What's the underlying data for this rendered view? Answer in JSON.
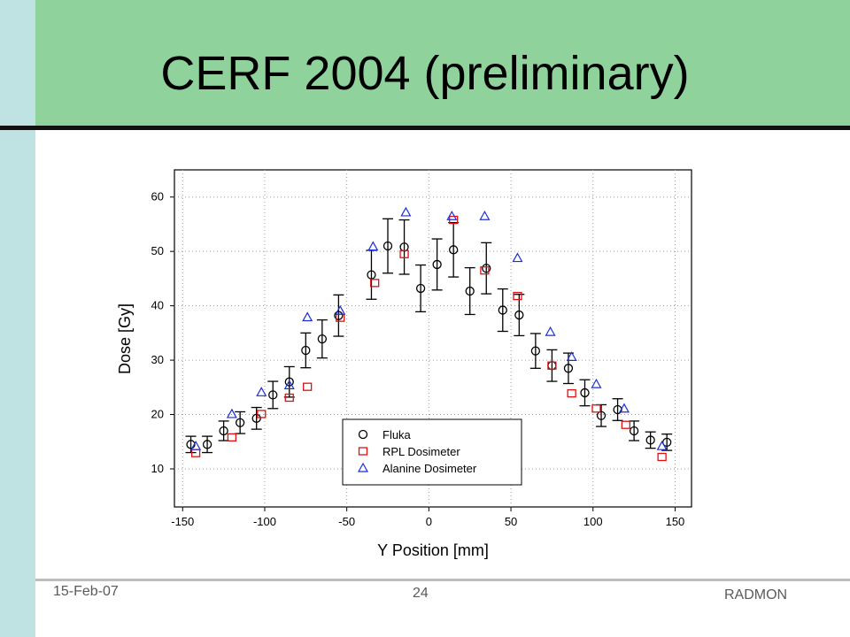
{
  "slide": {
    "title": "CERF 2004 (preliminary)",
    "date": "15-Feb-07",
    "page_number": "24",
    "footer_right": "RADMON"
  },
  "colors": {
    "header_band": "#8fd29c",
    "left_bar": "#bfe3e3",
    "fluka": "#000000",
    "rpl": "#e01010",
    "alanine": "#1a2fd8"
  },
  "chart_data": {
    "type": "scatter",
    "xlabel": "Y Position [mm]",
    "ylabel": "Dose [Gy]",
    "xlim": [
      -155,
      160
    ],
    "ylim": [
      3,
      65
    ],
    "xticks": [
      -150,
      -100,
      -50,
      0,
      50,
      100,
      150
    ],
    "yticks": [
      10,
      20,
      30,
      40,
      50,
      60
    ],
    "grid": true,
    "legend_position": "bottom-center",
    "series": [
      {
        "name": "Fluka",
        "marker": "circle",
        "points": [
          {
            "x": -145,
            "y": 14.5,
            "err": 1.5
          },
          {
            "x": -135,
            "y": 14.5,
            "err": 1.5
          },
          {
            "x": -125,
            "y": 17.0,
            "err": 1.8
          },
          {
            "x": -115,
            "y": 18.5,
            "err": 2.0
          },
          {
            "x": -105,
            "y": 19.3,
            "err": 2.0
          },
          {
            "x": -95,
            "y": 23.6,
            "err": 2.5
          },
          {
            "x": -85,
            "y": 26.0,
            "err": 2.8
          },
          {
            "x": -75,
            "y": 31.8,
            "err": 3.2
          },
          {
            "x": -65,
            "y": 33.9,
            "err": 3.5
          },
          {
            "x": -55,
            "y": 38.2,
            "err": 3.8
          },
          {
            "x": -35,
            "y": 45.7,
            "err": 4.5
          },
          {
            "x": -25,
            "y": 51.0,
            "err": 5.0
          },
          {
            "x": -15,
            "y": 50.8,
            "err": 5.0
          },
          {
            "x": -5,
            "y": 43.2,
            "err": 4.3
          },
          {
            "x": 5,
            "y": 47.6,
            "err": 4.7
          },
          {
            "x": 15,
            "y": 50.3,
            "err": 5.0
          },
          {
            "x": 25,
            "y": 42.7,
            "err": 4.3
          },
          {
            "x": 35,
            "y": 46.9,
            "err": 4.7
          },
          {
            "x": 45,
            "y": 39.2,
            "err": 3.9
          },
          {
            "x": 55,
            "y": 38.3,
            "err": 3.8
          },
          {
            "x": 65,
            "y": 31.7,
            "err": 3.2
          },
          {
            "x": 75,
            "y": 29.0,
            "err": 2.9
          },
          {
            "x": 85,
            "y": 28.5,
            "err": 2.8
          },
          {
            "x": 95,
            "y": 24.0,
            "err": 2.4
          },
          {
            "x": 105,
            "y": 19.8,
            "err": 2.0
          },
          {
            "x": 115,
            "y": 20.9,
            "err": 2.0
          },
          {
            "x": 125,
            "y": 17.0,
            "err": 1.8
          },
          {
            "x": 135,
            "y": 15.3,
            "err": 1.5
          },
          {
            "x": 145,
            "y": 14.9,
            "err": 1.5
          }
        ]
      },
      {
        "name": "RPL Dosimeter",
        "marker": "square",
        "points": [
          {
            "x": -142,
            "y": 12.9
          },
          {
            "x": -120,
            "y": 15.8
          },
          {
            "x": -102,
            "y": 20.1
          },
          {
            "x": -85,
            "y": 23.1
          },
          {
            "x": -74,
            "y": 25.1
          },
          {
            "x": -54,
            "y": 37.8
          },
          {
            "x": -33,
            "y": 44.2
          },
          {
            "x": -15,
            "y": 49.5
          },
          {
            "x": 15,
            "y": 55.8
          },
          {
            "x": 34,
            "y": 46.5
          },
          {
            "x": 54,
            "y": 41.8
          },
          {
            "x": 75,
            "y": 29.0
          },
          {
            "x": 87,
            "y": 23.9
          },
          {
            "x": 102,
            "y": 21.1
          },
          {
            "x": 120,
            "y": 18.1
          },
          {
            "x": 142,
            "y": 12.2
          }
        ]
      },
      {
        "name": "Alanine Dosimeter",
        "marker": "triangle",
        "points": [
          {
            "x": -142,
            "y": 14.2
          },
          {
            "x": -120,
            "y": 20.1
          },
          {
            "x": -102,
            "y": 24.1
          },
          {
            "x": -85,
            "y": 25.4
          },
          {
            "x": -74,
            "y": 37.9
          },
          {
            "x": -54,
            "y": 39.1
          },
          {
            "x": -34,
            "y": 50.9
          },
          {
            "x": -14,
            "y": 57.2
          },
          {
            "x": 14,
            "y": 56.5
          },
          {
            "x": 34,
            "y": 56.5
          },
          {
            "x": 54,
            "y": 48.8
          },
          {
            "x": 74,
            "y": 35.2
          },
          {
            "x": 87,
            "y": 30.6
          },
          {
            "x": 102,
            "y": 25.6
          },
          {
            "x": 119,
            "y": 21.1
          },
          {
            "x": 142,
            "y": 14.2
          }
        ]
      }
    ]
  }
}
